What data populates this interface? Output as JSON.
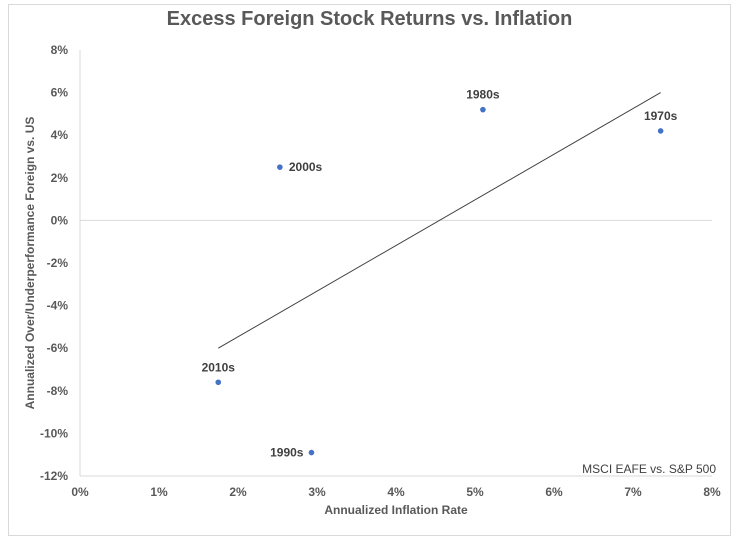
{
  "chart_data": {
    "type": "scatter",
    "title": "Excess Foreign Stock Returns vs. Inflation",
    "xlabel": "Annualized Inflation Rate",
    "ylabel": "Annualized Over/Underperformance Foreign vs. US",
    "annotation": "MSCI EAFE vs. S&P 500",
    "xlim": [
      0,
      8
    ],
    "ylim": [
      -12,
      8
    ],
    "x_ticks": [
      "0%",
      "1%",
      "2%",
      "3%",
      "4%",
      "5%",
      "6%",
      "7%",
      "8%"
    ],
    "y_ticks": [
      "8%",
      "6%",
      "4%",
      "2%",
      "0%",
      "-2%",
      "-4%",
      "-6%",
      "-8%",
      "-10%",
      "-12%"
    ],
    "grid": false,
    "marker_color": "#4472c4",
    "points": [
      {
        "label": "1970s",
        "x": 7.35,
        "y": 4.2
      },
      {
        "label": "1980s",
        "x": 5.1,
        "y": 5.2
      },
      {
        "label": "1990s",
        "x": 2.93,
        "y": -10.9
      },
      {
        "label": "2000s",
        "x": 2.53,
        "y": 2.5
      },
      {
        "label": "2010s",
        "x": 1.75,
        "y": -7.6
      }
    ],
    "trendline": {
      "x": [
        1.75,
        7.35
      ],
      "y": [
        -6.0,
        6.0
      ]
    }
  }
}
